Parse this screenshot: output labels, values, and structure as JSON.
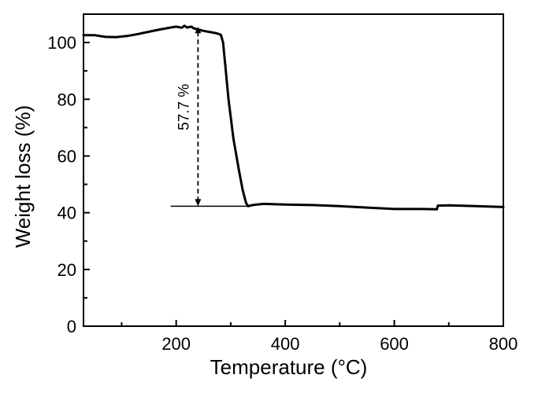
{
  "chart_data": {
    "type": "line",
    "title": "",
    "xlabel": "Temperature (°C)",
    "ylabel": "Weight loss (%)",
    "xlim": [
      30,
      800
    ],
    "ylim": [
      0,
      110
    ],
    "xticks": [
      200,
      400,
      600,
      800
    ],
    "yticks": [
      0,
      20,
      40,
      60,
      80,
      100
    ],
    "xtick_labels": [
      "200",
      "400",
      "600",
      "800"
    ],
    "ytick_labels": [
      "0",
      "20",
      "40",
      "60",
      "80",
      "100"
    ],
    "grid": false,
    "legend": "none",
    "series": [
      {
        "color": "#000000",
        "points": [
          [
            30,
            102.6
          ],
          [
            50,
            102.6
          ],
          [
            70,
            102.0
          ],
          [
            90,
            101.9
          ],
          [
            110,
            102.3
          ],
          [
            130,
            103.0
          ],
          [
            150,
            103.8
          ],
          [
            170,
            104.6
          ],
          [
            190,
            105.3
          ],
          [
            200,
            105.6
          ],
          [
            210,
            105.2
          ],
          [
            215,
            105.9
          ],
          [
            220,
            105.3
          ],
          [
            228,
            105.6
          ],
          [
            232,
            105.0
          ],
          [
            250,
            104.1
          ],
          [
            265,
            103.6
          ],
          [
            275,
            103.2
          ],
          [
            282,
            102.7
          ],
          [
            286,
            100.0
          ],
          [
            290,
            92.0
          ],
          [
            296,
            80.0
          ],
          [
            305,
            66.0
          ],
          [
            315,
            55.0
          ],
          [
            322,
            48.0
          ],
          [
            328,
            43.5
          ],
          [
            332,
            42.3
          ],
          [
            340,
            42.7
          ],
          [
            360,
            43.1
          ],
          [
            400,
            42.9
          ],
          [
            450,
            42.7
          ],
          [
            500,
            42.3
          ],
          [
            550,
            41.8
          ],
          [
            600,
            41.3
          ],
          [
            650,
            41.3
          ],
          [
            678,
            41.2
          ],
          [
            680,
            42.5
          ],
          [
            700,
            42.6
          ],
          [
            750,
            42.3
          ],
          [
            800,
            42.0
          ]
        ]
      }
    ],
    "annotations": [
      {
        "text": "57.7 %",
        "type": "double-dashed-arrow",
        "x": 240,
        "y_from": 42.3,
        "y_to": 105.5,
        "baseline_from_x": 190,
        "baseline_to_x": 333,
        "baseline_y": 42.3
      }
    ]
  }
}
